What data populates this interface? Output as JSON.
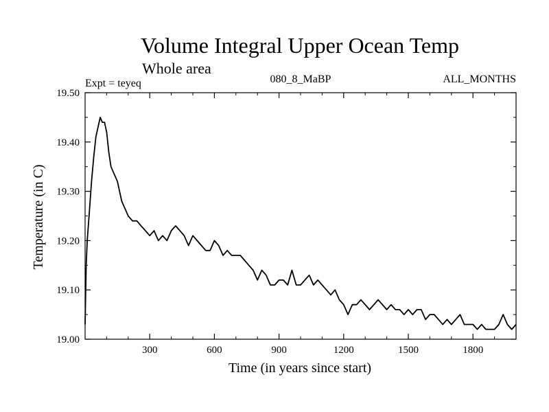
{
  "chart_data": {
    "type": "line",
    "title": "Volume Integral Upper Ocean Temp",
    "subtitle": "Whole area",
    "experiment": "Expt = teyeq",
    "run_id": "080_8_MaBP",
    "period": "ALL_MONTHS",
    "xlabel": "Time (in years since start)",
    "ylabel": "Temperature (in C)",
    "xlim": [
      0,
      2000
    ],
    "ylim": [
      19.0,
      19.5
    ],
    "x_ticks": [
      300,
      600,
      900,
      1200,
      1500,
      1800
    ],
    "x_tick_labels": [
      "300",
      "600",
      "900",
      "1200",
      "1500",
      "1800"
    ],
    "y_ticks": [
      19.0,
      19.1,
      19.2,
      19.3,
      19.4,
      19.5
    ],
    "y_tick_labels": [
      "19.00",
      "19.10",
      "19.20",
      "19.30",
      "19.40",
      "19.50"
    ],
    "grid": false,
    "series": [
      {
        "name": "Temperature",
        "x": [
          0,
          5,
          10,
          20,
          30,
          40,
          50,
          60,
          70,
          80,
          90,
          100,
          110,
          120,
          130,
          140,
          150,
          160,
          170,
          180,
          190,
          200,
          220,
          240,
          260,
          280,
          300,
          320,
          340,
          360,
          380,
          400,
          420,
          440,
          460,
          480,
          500,
          520,
          540,
          560,
          580,
          600,
          620,
          640,
          660,
          680,
          700,
          720,
          740,
          760,
          780,
          800,
          820,
          840,
          860,
          880,
          900,
          920,
          940,
          960,
          980,
          1000,
          1020,
          1040,
          1060,
          1080,
          1100,
          1120,
          1140,
          1160,
          1180,
          1200,
          1220,
          1240,
          1260,
          1280,
          1300,
          1320,
          1340,
          1360,
          1380,
          1400,
          1420,
          1440,
          1460,
          1480,
          1500,
          1520,
          1540,
          1560,
          1580,
          1600,
          1620,
          1640,
          1660,
          1680,
          1700,
          1720,
          1740,
          1760,
          1780,
          1800,
          1820,
          1840,
          1860,
          1880,
          1900,
          1920,
          1940,
          1960,
          1980,
          2000
        ],
        "values": [
          19.03,
          19.15,
          19.2,
          19.26,
          19.32,
          19.37,
          19.41,
          19.43,
          19.45,
          19.44,
          19.44,
          19.42,
          19.38,
          19.35,
          19.34,
          19.33,
          19.32,
          19.3,
          19.28,
          19.27,
          19.26,
          19.25,
          19.24,
          19.24,
          19.23,
          19.22,
          19.21,
          19.22,
          19.2,
          19.21,
          19.2,
          19.22,
          19.23,
          19.22,
          19.21,
          19.19,
          19.21,
          19.2,
          19.19,
          19.18,
          19.18,
          19.2,
          19.19,
          19.17,
          19.18,
          19.17,
          19.17,
          19.17,
          19.16,
          19.15,
          19.14,
          19.12,
          19.14,
          19.13,
          19.11,
          19.11,
          19.12,
          19.12,
          19.11,
          19.14,
          19.11,
          19.11,
          19.12,
          19.13,
          19.11,
          19.12,
          19.11,
          19.1,
          19.09,
          19.1,
          19.08,
          19.07,
          19.05,
          19.07,
          19.07,
          19.08,
          19.07,
          19.06,
          19.07,
          19.08,
          19.07,
          19.06,
          19.07,
          19.06,
          19.06,
          19.05,
          19.06,
          19.05,
          19.06,
          19.06,
          19.04,
          19.05,
          19.05,
          19.04,
          19.03,
          19.04,
          19.03,
          19.04,
          19.05,
          19.03,
          19.03,
          19.03,
          19.02,
          19.03,
          19.02,
          19.02,
          19.02,
          19.03,
          19.05,
          19.03,
          19.02,
          19.03
        ]
      }
    ]
  }
}
